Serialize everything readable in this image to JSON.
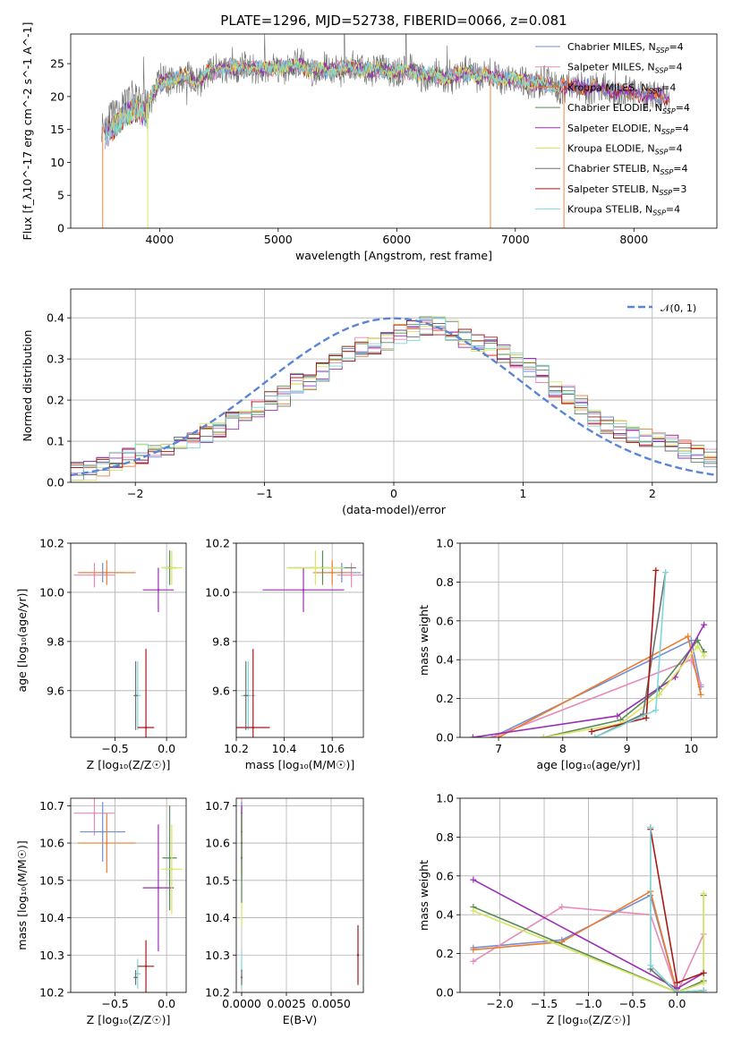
{
  "colors": {
    "chabrier_miles": "#6f8fd8",
    "salpeter_miles": "#e68ab8",
    "kroupa_miles": "#ee7b2c",
    "chabrier_elodie": "#5a8a5a",
    "salpeter_elodie": "#9b2fb4",
    "kroupa_elodie": "#d7e65c",
    "chabrier_stelib": "#707070",
    "salpeter_stelib": "#a81818",
    "kroupa_stelib": "#7fd8d8",
    "normal": "#5a84d6",
    "grid": "#b0b0b0"
  },
  "chart_data": [
    {
      "id": "spectrum",
      "type": "line",
      "title": "PLATE=1296, MJD=52738, FIBERID=0066, z=0.081",
      "xlabel": "wavelength [Angstrom, rest frame]",
      "ylabel": "Flux [f_λ10^-17 erg cm^-2 s^-1 A^-1]",
      "xlim": [
        3250,
        8700
      ],
      "ylim": [
        0,
        29.5
      ],
      "xticks": [
        4000,
        5000,
        6000,
        7000,
        8000
      ],
      "yticks": [
        0,
        5,
        10,
        15,
        20,
        25
      ],
      "grid": false,
      "legend_position": "top-right",
      "legend": [
        {
          "prefix": "Chabrier MILES, N",
          "sub": "SSP",
          "suffix": "=4",
          "color_key": "chabrier_miles"
        },
        {
          "prefix": "Salpeter MILES, N",
          "sub": "SSP",
          "suffix": "=4",
          "color_key": "salpeter_miles"
        },
        {
          "prefix": "Kroupa MILES, N",
          "sub": "SSP",
          "suffix": "=4",
          "color_key": "kroupa_miles"
        },
        {
          "prefix": "Chabrier ELODIE, N",
          "sub": "SSP",
          "suffix": "=4",
          "color_key": "chabrier_elodie"
        },
        {
          "prefix": "Salpeter ELODIE, N",
          "sub": "SSP",
          "suffix": "=4",
          "color_key": "salpeter_elodie"
        },
        {
          "prefix": "Kroupa ELODIE, N",
          "sub": "SSP",
          "suffix": "=4",
          "color_key": "kroupa_elodie"
        },
        {
          "prefix": "Chabrier STELIB, N",
          "sub": "SSP",
          "suffix": "=4",
          "color_key": "chabrier_stelib"
        },
        {
          "prefix": "Salpeter STELIB, N",
          "sub": "SSP",
          "suffix": "=3",
          "color_key": "salpeter_stelib"
        },
        {
          "prefix": "Kroupa STELIB, N",
          "sub": "SSP",
          "suffix": "=4",
          "color_key": "kroupa_stelib"
        }
      ],
      "continuum": {
        "x": [
          3500,
          3600,
          3700,
          3800,
          3900,
          4000,
          4100,
          4200,
          4300,
          4400,
          4500,
          4600,
          4700,
          4800,
          4900,
          5000,
          5200,
          5400,
          5600,
          5800,
          6000,
          6200,
          6400,
          6600,
          6800,
          7000,
          7200,
          7400,
          7600,
          7800,
          8000,
          8200,
          8300
        ],
        "y": [
          15,
          17,
          19,
          20,
          19,
          22,
          22.5,
          23,
          22,
          23.5,
          24,
          24.5,
          24,
          24.5,
          24,
          24.5,
          24.5,
          24,
          24.5,
          24,
          24,
          23.5,
          23,
          23.5,
          23,
          22.5,
          22,
          21.5,
          21.5,
          21,
          20.5,
          20,
          20
        ]
      }
    },
    {
      "id": "residuals",
      "type": "histogram",
      "xlabel": "(data-model)/error",
      "ylabel": "Normed distribution",
      "xlim": [
        -2.5,
        2.5
      ],
      "ylim": [
        0,
        0.47
      ],
      "xticks": [
        -2,
        -1,
        0,
        1,
        2
      ],
      "yticks": [
        0,
        0.1,
        0.2,
        0.3,
        0.4
      ],
      "grid": true,
      "legend_position": "top-right",
      "normal_label": "𝒩(0, 1)",
      "bin_width": 0.1,
      "bin_start": -2.5,
      "values": [
        0.03,
        0.03,
        0.04,
        0.05,
        0.06,
        0.07,
        0.07,
        0.08,
        0.09,
        0.1,
        0.12,
        0.13,
        0.15,
        0.17,
        0.18,
        0.2,
        0.21,
        0.24,
        0.25,
        0.27,
        0.29,
        0.31,
        0.33,
        0.33,
        0.34,
        0.36,
        0.37,
        0.38,
        0.38,
        0.37,
        0.35,
        0.34,
        0.33,
        0.31,
        0.3,
        0.28,
        0.26,
        0.23,
        0.21,
        0.19,
        0.16,
        0.14,
        0.13,
        0.12,
        0.11,
        0.1,
        0.09,
        0.08,
        0.07,
        0.06
      ]
    },
    {
      "id": "age-vs-Z",
      "type": "scatter",
      "xlabel": "Z [log₁₀(Z/Z☉)]",
      "ylabel": "age  [log₁₀(age/yr)]",
      "xlim": [
        -0.93,
        0.19
      ],
      "ylim": [
        9.41,
        10.2
      ],
      "xticks": [
        -0.5,
        0.0
      ],
      "yticks": [
        9.6,
        9.8,
        10.0,
        10.2
      ],
      "grid": true,
      "points": [
        {
          "key": "salpeter_miles",
          "x": -0.7,
          "y": 10.07,
          "xerr": 0.2,
          "yerr": 0.05
        },
        {
          "key": "chabrier_miles",
          "x": -0.62,
          "y": 10.08,
          "xerr": 0.22,
          "yerr": 0.04
        },
        {
          "key": "kroupa_miles",
          "x": -0.58,
          "y": 10.08,
          "xerr": 0.28,
          "yerr": 0.05
        },
        {
          "key": "salpeter_elodie",
          "x": -0.08,
          "y": 10.01,
          "xerr": 0.15,
          "yerr": 0.09
        },
        {
          "key": "chabrier_elodie",
          "x": 0.03,
          "y": 10.1,
          "xerr": 0.07,
          "yerr": 0.07
        },
        {
          "key": "kroupa_elodie",
          "x": 0.05,
          "y": 10.1,
          "xerr": 0.1,
          "yerr": 0.07
        },
        {
          "key": "kroupa_stelib",
          "x": -0.28,
          "y": 9.58,
          "xerr": 0.03,
          "yerr": 0.14
        },
        {
          "key": "chabrier_stelib",
          "x": -0.3,
          "y": 9.58,
          "xerr": 0.02,
          "yerr": 0.14
        },
        {
          "key": "salpeter_stelib",
          "x": -0.2,
          "y": 9.45,
          "xerr": 0.08,
          "yerr": 0.32
        }
      ]
    },
    {
      "id": "age-vs-mass",
      "type": "scatter",
      "xlabel": "mass [log₁₀(M/M☉)]",
      "xlim": [
        10.2,
        10.73
      ],
      "ylim": [
        9.41,
        10.2
      ],
      "xticks": [
        10.2,
        10.4,
        10.6
      ],
      "yticks": [
        9.6,
        9.8,
        10.0,
        10.2
      ],
      "grid": true,
      "points": [
        {
          "key": "salpeter_miles",
          "x": 10.68,
          "y": 10.07,
          "xerr": 0.06,
          "yerr": 0.05
        },
        {
          "key": "chabrier_miles",
          "x": 10.64,
          "y": 10.08,
          "xerr": 0.08,
          "yerr": 0.04
        },
        {
          "key": "kroupa_miles",
          "x": 10.6,
          "y": 10.08,
          "xerr": 0.08,
          "yerr": 0.05
        },
        {
          "key": "salpeter_elodie",
          "x": 10.48,
          "y": 10.01,
          "xerr": 0.17,
          "yerr": 0.09
        },
        {
          "key": "chabrier_elodie",
          "x": 10.56,
          "y": 10.1,
          "xerr": 0.14,
          "yerr": 0.07
        },
        {
          "key": "kroupa_elodie",
          "x": 10.53,
          "y": 10.1,
          "xerr": 0.12,
          "yerr": 0.07
        },
        {
          "key": "kroupa_stelib",
          "x": 10.25,
          "y": 9.58,
          "xerr": 0.03,
          "yerr": 0.14
        },
        {
          "key": "chabrier_stelib",
          "x": 10.24,
          "y": 9.58,
          "xerr": 0.01,
          "yerr": 0.14
        },
        {
          "key": "salpeter_stelib",
          "x": 10.27,
          "y": 9.45,
          "xerr": 0.07,
          "yerr": 0.32
        }
      ]
    },
    {
      "id": "weight-vs-age",
      "type": "line",
      "xlabel": "age  [log₁₀(age/yr)]",
      "ylabel": "mass weight",
      "xlim": [
        6.4,
        10.4
      ],
      "ylim": [
        0,
        1
      ],
      "xticks": [
        7,
        8,
        9,
        10
      ],
      "yticks": [
        0,
        0.2,
        0.4,
        0.6,
        0.8,
        1.0
      ],
      "grid": true,
      "series": [
        {
          "key": "chabrier_miles",
          "x": [
            6.9,
            10.0,
            10.15
          ],
          "y": [
            0.0,
            0.5,
            0.26
          ]
        },
        {
          "key": "salpeter_miles",
          "x": [
            6.9,
            10.0,
            10.15
          ],
          "y": [
            0.0,
            0.4,
            0.27
          ]
        },
        {
          "key": "kroupa_miles",
          "x": [
            7.0,
            9.95,
            10.15
          ],
          "y": [
            0.0,
            0.52,
            0.22
          ]
        },
        {
          "key": "chabrier_elodie",
          "x": [
            7.7,
            8.9,
            9.5,
            10.1,
            10.2
          ],
          "y": [
            0.0,
            0.09,
            0.25,
            0.5,
            0.44
          ]
        },
        {
          "key": "salpeter_elodie",
          "x": [
            6.6,
            8.85,
            9.75,
            10.2
          ],
          "y": [
            0.0,
            0.11,
            0.31,
            0.58
          ]
        },
        {
          "key": "kroupa_elodie",
          "x": [
            7.7,
            8.9,
            9.5,
            10.1,
            10.2
          ],
          "y": [
            0.0,
            0.07,
            0.22,
            0.47,
            0.42
          ]
        },
        {
          "key": "chabrier_stelib",
          "x": [
            8.5,
            9.25,
            9.6
          ],
          "y": [
            0.0,
            0.12,
            0.85
          ]
        },
        {
          "key": "salpeter_stelib",
          "x": [
            8.45,
            9.3,
            9.45
          ],
          "y": [
            0.03,
            0.1,
            0.86
          ]
        },
        {
          "key": "kroupa_stelib",
          "x": [
            8.5,
            9.45,
            9.6
          ],
          "y": [
            0.0,
            0.14,
            0.85
          ]
        }
      ]
    },
    {
      "id": "mass-vs-Z",
      "type": "scatter",
      "xlabel": "Z [log₁₀(Z/Z☉)]",
      "ylabel": "mass [log₁₀(M/M☉)]",
      "xlim": [
        -0.93,
        0.19
      ],
      "ylim": [
        10.2,
        10.72
      ],
      "xticks": [
        -0.5,
        0.0
      ],
      "yticks": [
        10.2,
        10.3,
        10.4,
        10.5,
        10.6,
        10.7
      ],
      "grid": true,
      "points": [
        {
          "key": "salpeter_miles",
          "x": -0.7,
          "y": 10.68,
          "xerr": 0.2,
          "yerr": 0.06
        },
        {
          "key": "chabrier_miles",
          "x": -0.62,
          "y": 10.63,
          "xerr": 0.22,
          "yerr": 0.08
        },
        {
          "key": "kroupa_miles",
          "x": -0.58,
          "y": 10.6,
          "xerr": 0.28,
          "yerr": 0.08
        },
        {
          "key": "salpeter_elodie",
          "x": -0.08,
          "y": 10.48,
          "xerr": 0.15,
          "yerr": 0.17
        },
        {
          "key": "chabrier_elodie",
          "x": 0.03,
          "y": 10.56,
          "xerr": 0.07,
          "yerr": 0.14
        },
        {
          "key": "kroupa_elodie",
          "x": 0.05,
          "y": 10.53,
          "xerr": 0.1,
          "yerr": 0.12
        },
        {
          "key": "kroupa_stelib",
          "x": -0.28,
          "y": 10.25,
          "xerr": 0.03,
          "yerr": 0.04
        },
        {
          "key": "chabrier_stelib",
          "x": -0.3,
          "y": 10.24,
          "xerr": 0.02,
          "yerr": 0.02
        },
        {
          "key": "salpeter_stelib",
          "x": -0.2,
          "y": 10.27,
          "xerr": 0.08,
          "yerr": 0.07
        }
      ]
    },
    {
      "id": "mass-vs-EBV",
      "type": "scatter",
      "xlabel": "E(B-V)",
      "xlim": [
        -0.0003,
        0.0068
      ],
      "ylim": [
        10.2,
        10.72
      ],
      "xticks": [
        0.0,
        0.0025,
        0.005
      ],
      "xticklabels": [
        "0.0000",
        "0.0025",
        "0.0050"
      ],
      "yticks": [
        10.2,
        10.3,
        10.4,
        10.5,
        10.6,
        10.7
      ],
      "grid": true,
      "points": [
        {
          "key": "salpeter_miles",
          "x": 0.0,
          "y": 10.68,
          "xerr": 0,
          "yerr": 0.06
        },
        {
          "key": "chabrier_miles",
          "x": 0.0,
          "y": 10.63,
          "xerr": 0,
          "yerr": 0.08
        },
        {
          "key": "kroupa_miles",
          "x": 0.0,
          "y": 10.6,
          "xerr": 0,
          "yerr": 0.08
        },
        {
          "key": "salpeter_elodie",
          "x": 0.0,
          "y": 10.6,
          "xerr": 0,
          "yerr": 0.1
        },
        {
          "key": "kroupa_elodie",
          "x": 0.0,
          "y": 10.52,
          "xerr": 0,
          "yerr": 0.14
        },
        {
          "key": "chabrier_elodie",
          "x": 0.0,
          "y": 10.56,
          "xerr": 0,
          "yerr": 0.12
        },
        {
          "key": "kroupa_stelib",
          "x": 0.0,
          "y": 10.26,
          "xerr": 0,
          "yerr": 0.05
        },
        {
          "key": "chabrier_stelib",
          "x": 0.0,
          "y": 10.24,
          "xerr": 0,
          "yerr": 0.02
        },
        {
          "key": "salpeter_stelib",
          "x": 0.0065,
          "y": 10.3,
          "xerr": 0,
          "yerr": 0.08
        }
      ]
    },
    {
      "id": "weight-vs-Z",
      "type": "line",
      "xlabel": "Z [log₁₀(Z/Z☉)]",
      "ylabel": "mass weight",
      "xlim": [
        -2.45,
        0.45
      ],
      "ylim": [
        0,
        1
      ],
      "xticks": [
        -2.0,
        -1.5,
        -1.0,
        -0.5,
        0.0
      ],
      "xticklabels": [
        "−2.0",
        "−1.5",
        "−1.0",
        "−0.5",
        "0.0"
      ],
      "yticks": [
        0,
        0.2,
        0.4,
        0.6,
        0.8,
        1.0
      ],
      "grid": true,
      "series": [
        {
          "key": "chabrier_miles",
          "x": [
            -2.3,
            -1.3,
            -0.3,
            0.0,
            0.3
          ],
          "y": [
            0.23,
            0.27,
            0.5,
            0.0,
            0.01
          ]
        },
        {
          "key": "salpeter_miles",
          "x": [
            -2.3,
            -1.3,
            -0.3,
            0.0,
            0.3
          ],
          "y": [
            0.16,
            0.44,
            0.4,
            0.0,
            0.3
          ]
        },
        {
          "key": "kroupa_miles",
          "x": [
            -2.3,
            -1.3,
            -0.3,
            0.0,
            0.3
          ],
          "y": [
            0.22,
            0.26,
            0.52,
            0.0,
            0.0
          ]
        },
        {
          "key": "chabrier_elodie",
          "x": [
            -2.3,
            0.0,
            0.3,
            0.3
          ],
          "y": [
            0.44,
            0.0,
            0.06,
            0.5
          ]
        },
        {
          "key": "salpeter_elodie",
          "x": [
            -2.3,
            0.0,
            0.3
          ],
          "y": [
            0.58,
            0.02,
            0.1
          ]
        },
        {
          "key": "kroupa_elodie",
          "x": [
            -2.3,
            0.0,
            0.3,
            0.3
          ],
          "y": [
            0.42,
            0.0,
            0.05,
            0.51
          ]
        },
        {
          "key": "chabrier_stelib",
          "x": [
            -0.3,
            -0.3,
            0.0,
            0.3
          ],
          "y": [
            0.85,
            0.12,
            0.0,
            0.01
          ]
        },
        {
          "key": "salpeter_stelib",
          "x": [
            -0.3,
            0.0,
            0.3
          ],
          "y": [
            0.84,
            0.05,
            0.1
          ]
        },
        {
          "key": "kroupa_stelib",
          "x": [
            -0.3,
            -0.3,
            0.0,
            0.3
          ],
          "y": [
            0.85,
            0.14,
            0.0,
            0.01
          ]
        }
      ]
    }
  ]
}
